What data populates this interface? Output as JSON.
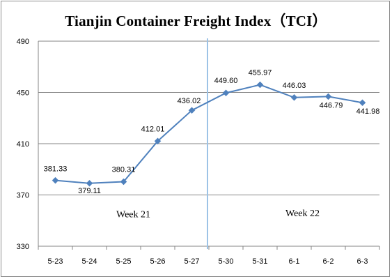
{
  "chart_data": {
    "type": "line",
    "title": "Tianjin Container Freight Index（TCI）",
    "xlabel": "",
    "ylabel": "",
    "categories": [
      "5-23",
      "5-24",
      "5-25",
      "5-26",
      "5-27",
      "5-30",
      "5-31",
      "6-1",
      "6-2",
      "6-3"
    ],
    "series": [
      {
        "values": [
          381.33,
          379.11,
          380.31,
          412.01,
          436.02,
          449.6,
          455.97,
          446.03,
          446.79,
          441.98
        ],
        "labels": [
          "381.33",
          "379.11",
          "380.31",
          "412.01",
          "436.02",
          "449.60",
          "455.97",
          "446.03",
          "446.79",
          "441.98"
        ],
        "color": "#4f81bd"
      }
    ],
    "ylim": [
      330,
      490
    ],
    "yticks": [
      "330",
      "370",
      "410",
      "450",
      "490"
    ],
    "grid": true,
    "divider_color": "#9dc3e6",
    "annotations": [
      "Week 21",
      "Week 22"
    ]
  }
}
